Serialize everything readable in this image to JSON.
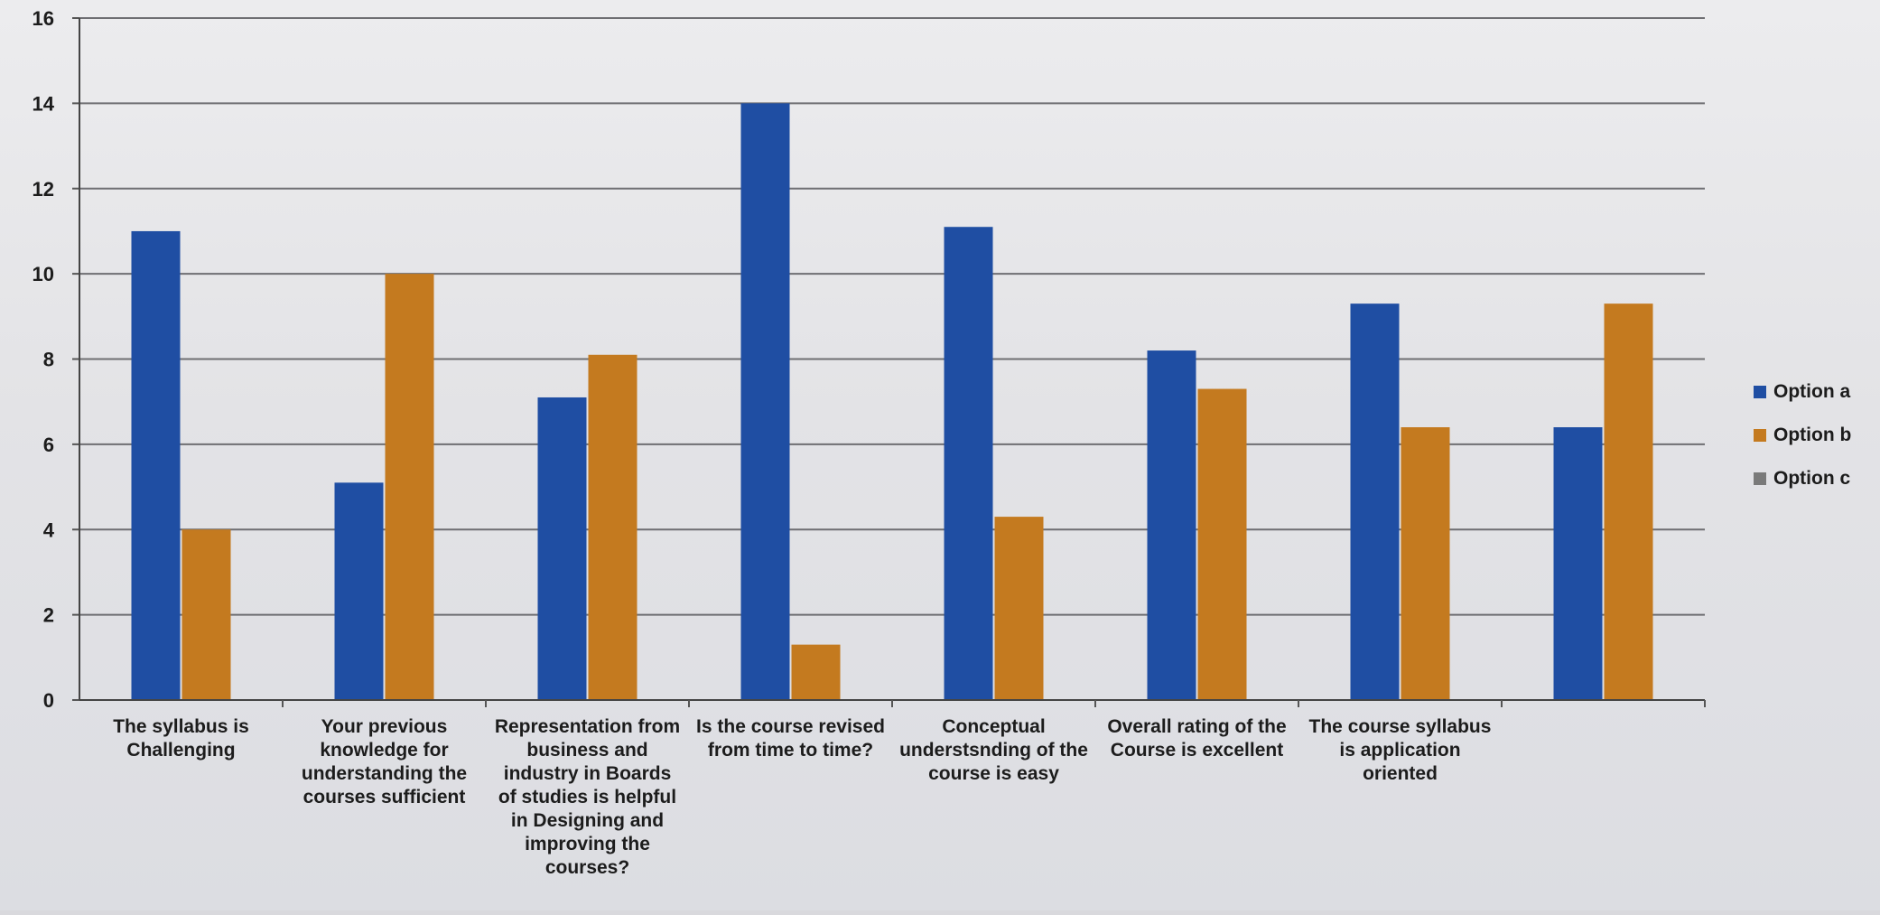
{
  "chart_data": {
    "type": "bar",
    "title": "",
    "xlabel": "",
    "ylabel": "",
    "ylim": [
      0,
      16
    ],
    "yticks": [
      0,
      2,
      4,
      6,
      8,
      10,
      12,
      14,
      16
    ],
    "grid": true,
    "legend_position": "right",
    "categories": [
      [
        "The syllabus is",
        "Challenging"
      ],
      [
        "Your previous",
        "knowledge for",
        "understanding the",
        "courses sufficient"
      ],
      [
        "Representation from",
        "business and",
        "industry in  Boards",
        "of studies is helpful",
        "in Designing and",
        "improving the",
        "courses?"
      ],
      [
        "Is the course revised",
        "from time to time?"
      ],
      [
        "Conceptual",
        "understsnding of the",
        "course is easy"
      ],
      [
        "Overall rating of the",
        "Course is excellent"
      ],
      [
        "The course syllabus",
        "is application",
        "oriented"
      ],
      []
    ],
    "series": [
      {
        "name": "Option a",
        "color": "#1f4ea3",
        "values": [
          11,
          5.1,
          7.1,
          14,
          11.1,
          8.2,
          9.3,
          6.4
        ]
      },
      {
        "name": "Option b",
        "color": "#c47a1f",
        "values": [
          4,
          10,
          8.1,
          1.3,
          4.3,
          7.3,
          6.4,
          9.3
        ]
      },
      {
        "name": "Option c",
        "color": "#7a7a7a",
        "values": [
          0,
          0,
          0,
          0,
          0,
          0,
          0,
          0
        ]
      }
    ]
  }
}
